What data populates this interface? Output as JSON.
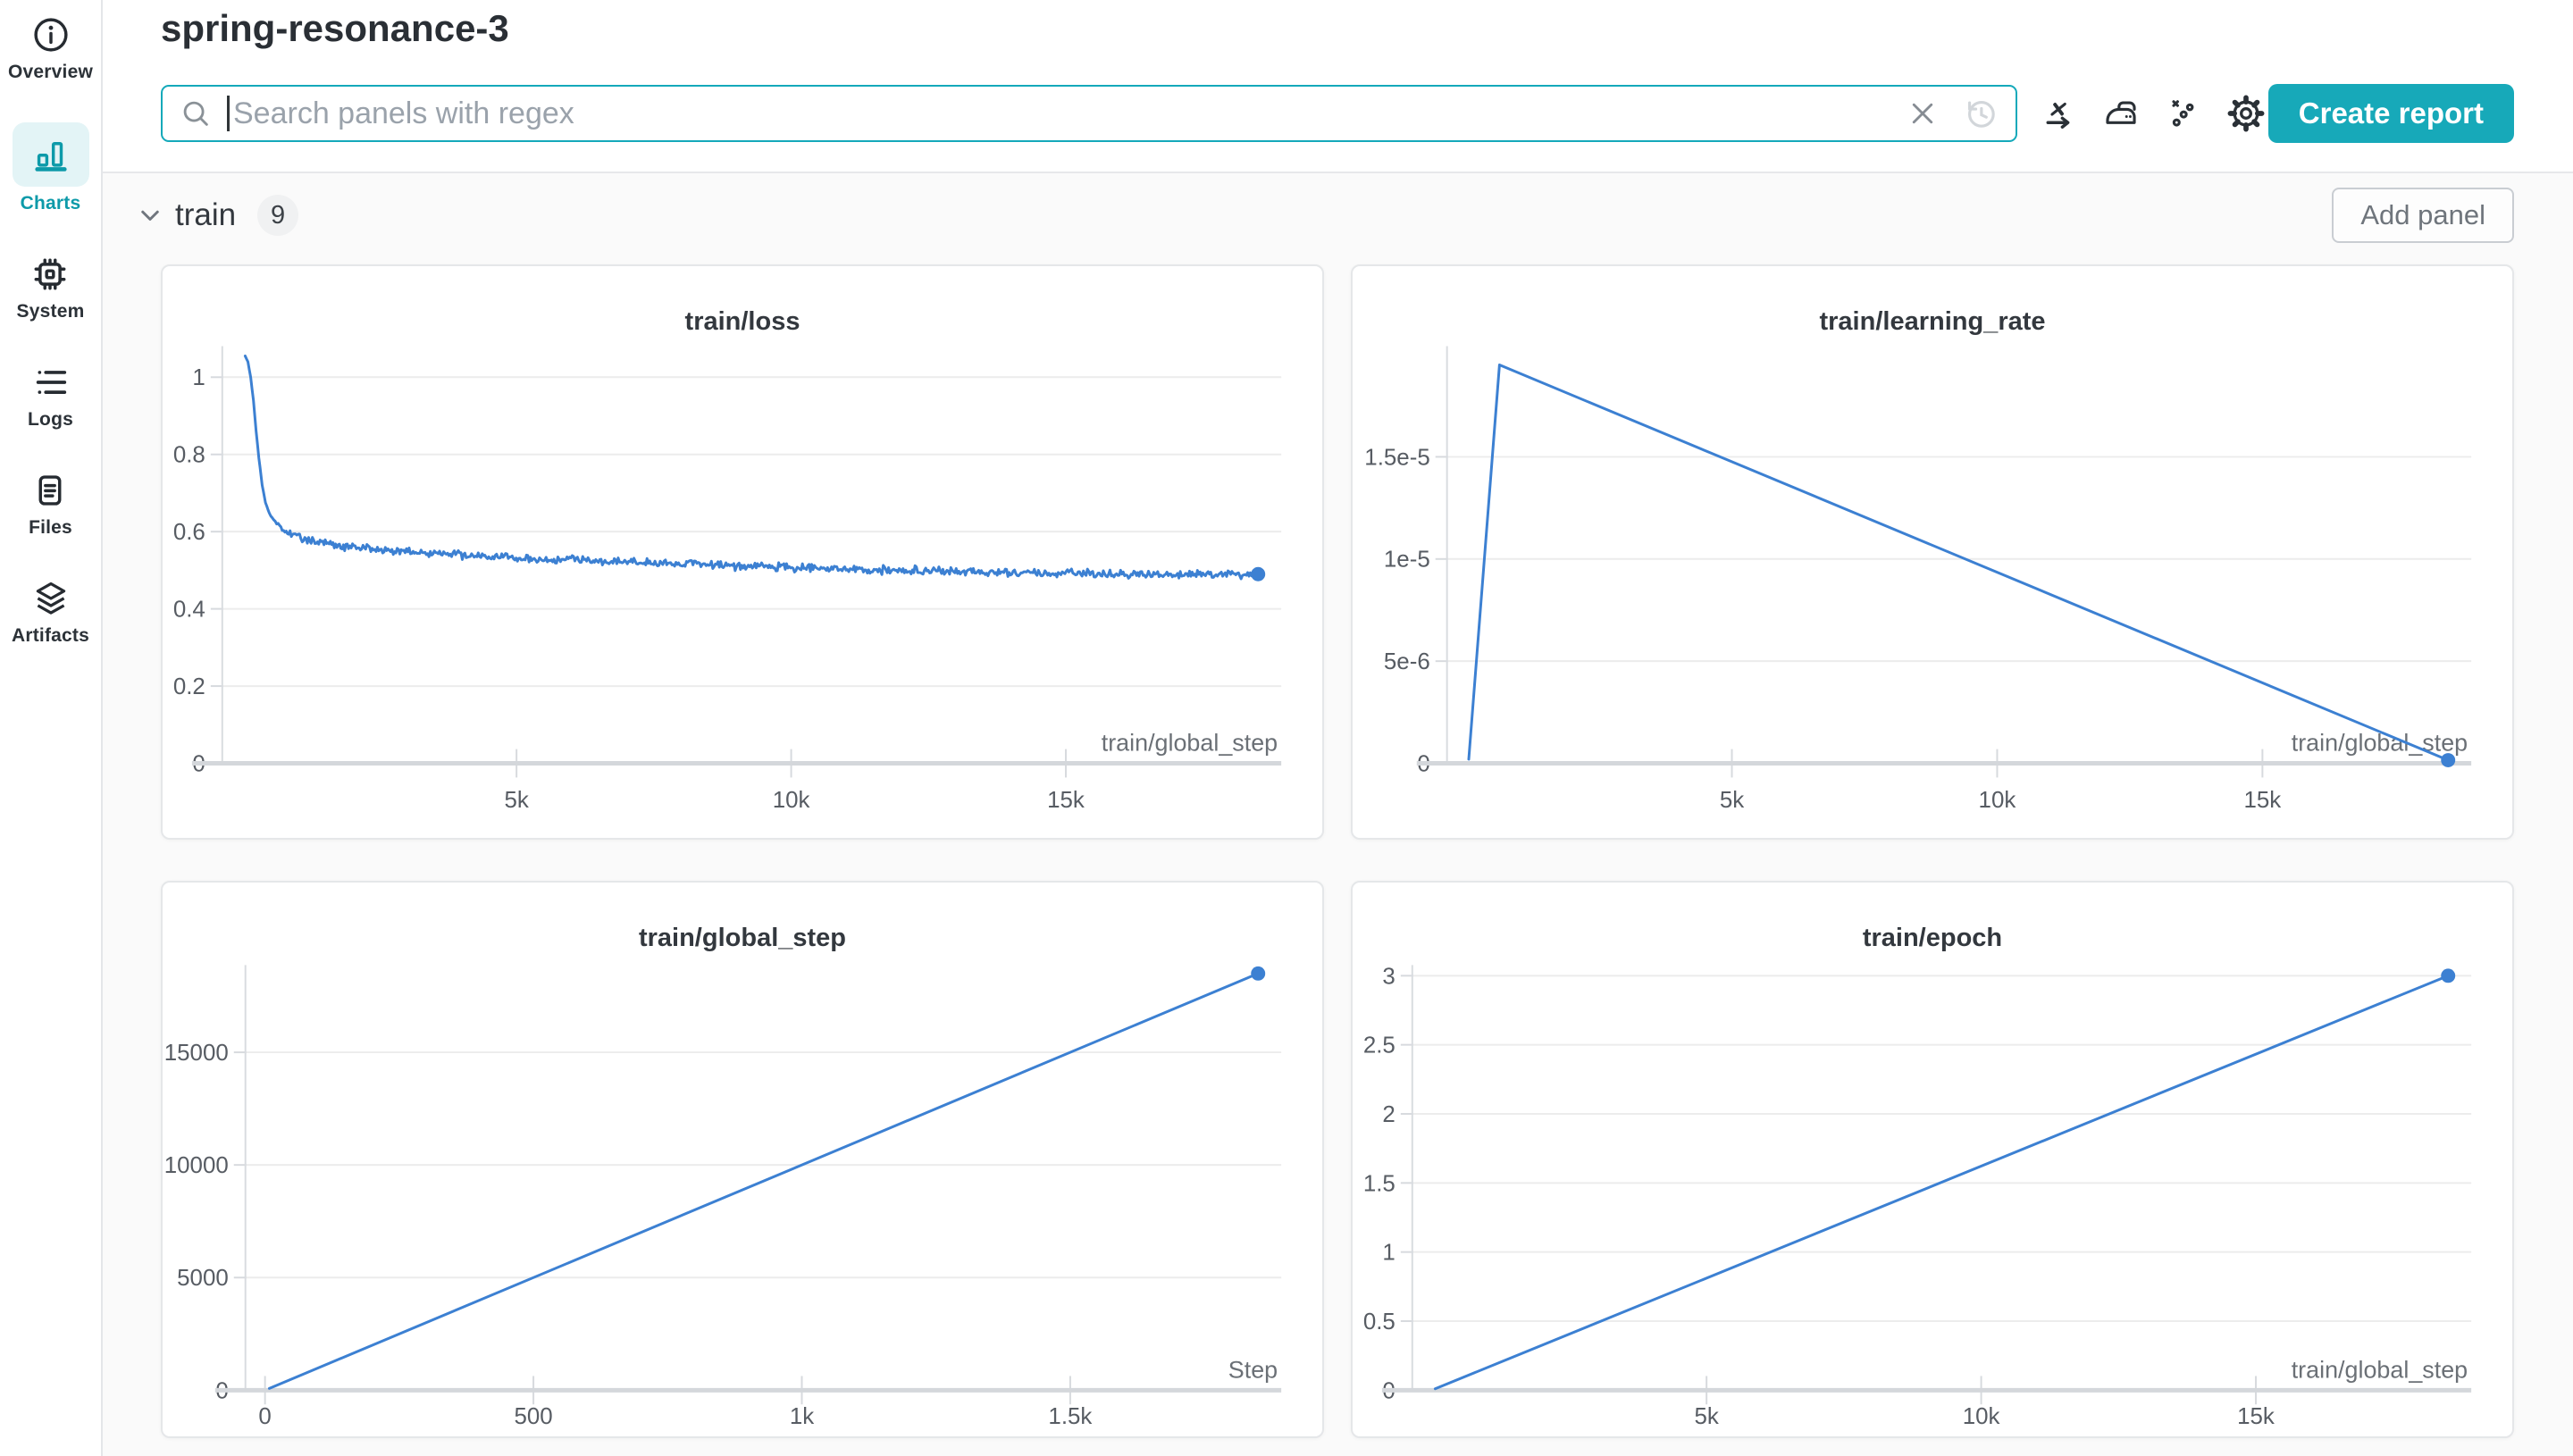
{
  "app": {
    "accent": "#14a9ba",
    "chart_line_color": "#3c80d2",
    "active_nav_color": "#0d9aa9",
    "content_bg": "#fafafa"
  },
  "sidebar": {
    "items": [
      {
        "label": "Overview",
        "icon": "info-icon",
        "active": false
      },
      {
        "label": "Charts",
        "icon": "bar-chart-icon",
        "active": true
      },
      {
        "label": "System",
        "icon": "cpu-chip-icon",
        "active": false
      },
      {
        "label": "Logs",
        "icon": "list-icon",
        "active": false
      },
      {
        "label": "Files",
        "icon": "document-icon",
        "active": false
      },
      {
        "label": "Artifacts",
        "icon": "layers-icon",
        "active": false
      }
    ]
  },
  "header": {
    "run_title": "spring-resonance-3"
  },
  "toolbar": {
    "search_placeholder": "Search panels with regex",
    "create_report_label": "Create report",
    "icons": [
      "clear-icon",
      "history-icon",
      "x-axis-icon",
      "iron-icon",
      "scatter-points-icon",
      "gear-icon"
    ]
  },
  "section": {
    "name": "train",
    "panel_count": "9",
    "add_panel_label": "Add panel"
  },
  "chart_data": [
    {
      "type": "line",
      "title": "train/loss",
      "x_label": "train/global_step",
      "color": "#3c80d2",
      "x_domain": [
        0,
        18500
      ],
      "y_domain": [
        0,
        1.053
      ],
      "x_ticks": [
        {
          "v": 5000,
          "label": "5k"
        },
        {
          "v": 10000,
          "label": "10k"
        },
        {
          "v": 15000,
          "label": "15k"
        }
      ],
      "y_ticks": [
        {
          "v": 0,
          "label": "0"
        },
        {
          "v": 0.2,
          "label": "0.2"
        },
        {
          "v": 0.4,
          "label": "0.4"
        },
        {
          "v": 0.6,
          "label": "0.6"
        },
        {
          "v": 0.8,
          "label": "0.8"
        },
        {
          "v": 1,
          "label": "1"
        }
      ],
      "points": [
        [
          60,
          1.055
        ],
        [
          110,
          1.04
        ],
        [
          160,
          1.0
        ],
        [
          210,
          0.94
        ],
        [
          260,
          0.86
        ],
        [
          310,
          0.79
        ],
        [
          370,
          0.72
        ],
        [
          430,
          0.675
        ],
        [
          500,
          0.648
        ],
        [
          580,
          0.632
        ],
        [
          660,
          0.618
        ],
        [
          760,
          0.603
        ],
        [
          900,
          0.592
        ],
        [
          1100,
          0.582
        ],
        [
          1400,
          0.572
        ],
        [
          1800,
          0.563
        ],
        [
          2300,
          0.556
        ],
        [
          2900,
          0.549
        ],
        [
          3600,
          0.543
        ],
        [
          4400,
          0.537
        ],
        [
          5300,
          0.531
        ],
        [
          6300,
          0.525
        ],
        [
          7400,
          0.519
        ],
        [
          8500,
          0.514
        ],
        [
          9700,
          0.508
        ],
        [
          11000,
          0.503
        ],
        [
          12400,
          0.499
        ],
        [
          13800,
          0.495
        ],
        [
          15200,
          0.492
        ],
        [
          16600,
          0.489
        ],
        [
          18000,
          0.489
        ],
        [
          18500,
          0.49
        ]
      ],
      "noise": {
        "amplitude": 0.013,
        "start_x": 430,
        "step": 24
      },
      "end_dot": true,
      "grid": true,
      "legend": "none"
    },
    {
      "type": "line",
      "title": "train/learning_rate",
      "x_label": "train/global_step",
      "color": "#3c80d2",
      "x_domain": [
        0,
        18500
      ],
      "y_domain": [
        0,
        1.99e-05
      ],
      "x_ticks": [
        {
          "v": 5000,
          "label": "5k"
        },
        {
          "v": 10000,
          "label": "10k"
        },
        {
          "v": 15000,
          "label": "15k"
        }
      ],
      "y_ticks": [
        {
          "v": 0,
          "label": "0"
        },
        {
          "v": 5e-06,
          "label": "5e-6"
        },
        {
          "v": 1e-05,
          "label": "1e-5"
        },
        {
          "v": 1.5e-05,
          "label": "1.5e-5"
        }
      ],
      "points": [
        [
          40,
          2e-07
        ],
        [
          620,
          1.95e-05
        ],
        [
          18500,
          1.5e-07
        ]
      ],
      "end_dot": true,
      "grid": true,
      "legend": "none"
    },
    {
      "type": "line",
      "title": "train/global_step",
      "x_label": "Step",
      "color": "#3c80d2",
      "x_domain": [
        0,
        1850
      ],
      "y_domain": [
        0,
        18400
      ],
      "x_ticks": [
        {
          "v": 0,
          "label": "0"
        },
        {
          "v": 500,
          "label": "500"
        },
        {
          "v": 1000,
          "label": "1k"
        },
        {
          "v": 1500,
          "label": "1.5k"
        }
      ],
      "y_ticks": [
        {
          "v": 0,
          "label": "0"
        },
        {
          "v": 5000,
          "label": "5000"
        },
        {
          "v": 10000,
          "label": "10000"
        },
        {
          "v": 15000,
          "label": "15000"
        }
      ],
      "points": [
        [
          8,
          80
        ],
        [
          1850,
          18500
        ]
      ],
      "end_dot": true,
      "grid": true,
      "legend": "none"
    },
    {
      "type": "line",
      "title": "train/epoch",
      "x_label": "train/global_step",
      "color": "#3c80d2",
      "x_domain": [
        0,
        18500
      ],
      "y_domain": [
        0,
        3.0
      ],
      "x_ticks": [
        {
          "v": 5000,
          "label": "5k"
        },
        {
          "v": 10000,
          "label": "10k"
        },
        {
          "v": 15000,
          "label": "15k"
        }
      ],
      "y_ticks": [
        {
          "v": 0,
          "label": "0"
        },
        {
          "v": 0.5,
          "label": "0.5"
        },
        {
          "v": 1,
          "label": "1"
        },
        {
          "v": 1.5,
          "label": "1.5"
        },
        {
          "v": 2,
          "label": "2"
        },
        {
          "v": 2.5,
          "label": "2.5"
        },
        {
          "v": 3,
          "label": "3"
        }
      ],
      "points": [
        [
          60,
          0.01
        ],
        [
          18500,
          3.0
        ]
      ],
      "end_dot": true,
      "grid": true,
      "legend": "none"
    }
  ]
}
